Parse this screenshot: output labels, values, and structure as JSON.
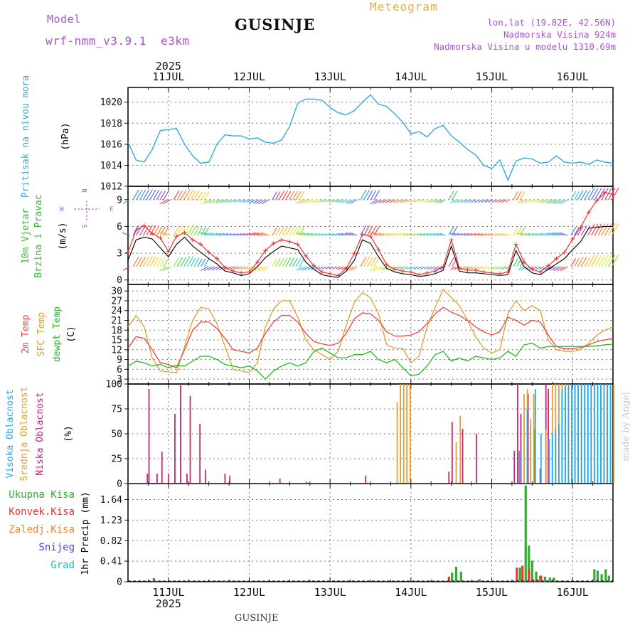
{
  "header": {
    "model_label": "Model",
    "model_name": "wrf-nmm_v3.9.1  e3km",
    "station": "GUSINJE",
    "meteogram_label": "Meteogram",
    "lonlat": "lon,lat (19.82E, 42.56N)",
    "elevation": "Nadmorska Visina 924m",
    "model_elevation": "Nadmorska Visina u modelu 1310.69m",
    "credit": "made by Angel",
    "footer_station": "GUSINJE"
  },
  "colors": {
    "pressure": "#33aadd",
    "wind_speed": "#111111",
    "wind_gust": "#ee3333",
    "temp2m": "#ee4444",
    "sfc_temp": "#e0a030",
    "dewpt": "#22bb22",
    "cloud_high": "#22aaee",
    "cloud_mid": "#e0a030",
    "cloud_low": "#cc2277",
    "precip_total": "#33aa33",
    "precip_conv": "#ee3333",
    "precip_frozen": "#ee8833",
    "snow": "#4444ee",
    "hail": "#22bbbb",
    "purple_text": "#aa55cc",
    "orange_text": "#e0b050"
  },
  "chart_data": [
    {
      "type": "line",
      "panel": "pressure",
      "title": "Pritisak na nivou mora",
      "ylabel": "(hPa)",
      "ylim": [
        1012,
        1021.4
      ],
      "yticks": [
        "1012",
        "1014",
        "1016",
        "1018",
        "1020"
      ],
      "days": [
        "11JUL",
        "12JUL",
        "13JUL",
        "14JUL",
        "15JUL",
        "16JUL"
      ],
      "year": "2025",
      "xlim": [
        10.5,
        16.5
      ],
      "x": [
        10.5,
        10.6,
        10.7,
        10.8,
        10.9,
        11.0,
        11.1,
        11.2,
        11.3,
        11.4,
        11.5,
        11.6,
        11.7,
        11.8,
        11.9,
        12.0,
        12.1,
        12.2,
        12.3,
        12.4,
        12.5,
        12.6,
        12.7,
        12.8,
        12.9,
        13.0,
        13.1,
        13.2,
        13.3,
        13.4,
        13.5,
        13.6,
        13.7,
        13.8,
        13.9,
        14.0,
        14.1,
        14.2,
        14.3,
        14.4,
        14.5,
        14.6,
        14.7,
        14.8,
        14.9,
        15.0,
        15.1,
        15.2,
        15.3,
        15.4,
        15.5,
        15.6,
        15.7,
        15.8,
        15.9,
        16.0,
        16.1,
        16.2,
        16.3,
        16.4,
        16.5
      ],
      "values": [
        1016.2,
        1014.5,
        1014.3,
        1015.5,
        1017.3,
        1017.4,
        1017.5,
        1016.0,
        1014.9,
        1014.2,
        1014.3,
        1016.0,
        1016.9,
        1016.8,
        1016.8,
        1016.5,
        1016.6,
        1016.2,
        1016.1,
        1016.4,
        1017.7,
        1019.9,
        1020.3,
        1020.3,
        1020.2,
        1019.5,
        1019.0,
        1018.8,
        1019.2,
        1020.0,
        1020.7,
        1019.8,
        1019.6,
        1018.9,
        1018.1,
        1017.0,
        1017.2,
        1016.7,
        1017.5,
        1017.8,
        1016.8,
        1016.2,
        1015.5,
        1015.0,
        1014.0,
        1013.7,
        1014.5,
        1012.6,
        1014.4,
        1014.7,
        1014.6,
        1014.2,
        1014.3,
        1014.9,
        1014.3,
        1014.2,
        1014.3,
        1014.1,
        1014.5,
        1014.3,
        1014.2
      ]
    },
    {
      "type": "line",
      "panel": "wind",
      "title": "10m Vjetar",
      "title2": "Brzina i Pravac",
      "ylabel": "(m/s)",
      "ylim": [
        -0.5,
        10.5
      ],
      "yticks": [
        "0",
        "3",
        "6",
        "9"
      ],
      "compass_labels": {
        "n": "N",
        "s": "S",
        "e": "E",
        "w": "W"
      },
      "x": [
        10.5,
        10.6,
        10.7,
        10.8,
        10.9,
        11.0,
        11.1,
        11.2,
        11.3,
        11.4,
        11.5,
        11.6,
        11.7,
        11.8,
        11.9,
        12.0,
        12.1,
        12.2,
        12.3,
        12.4,
        12.5,
        12.6,
        12.7,
        12.8,
        12.9,
        13.0,
        13.1,
        13.2,
        13.3,
        13.4,
        13.5,
        13.6,
        13.7,
        13.8,
        13.9,
        14.0,
        14.1,
        14.2,
        14.3,
        14.4,
        14.5,
        14.6,
        14.7,
        14.8,
        14.9,
        15.0,
        15.1,
        15.2,
        15.3,
        15.4,
        15.5,
        15.6,
        15.7,
        15.8,
        15.9,
        16.0,
        16.1,
        16.2,
        16.3,
        16.4,
        16.5
      ],
      "series": [
        {
          "name": "speed",
          "values": [
            2.2,
            4.5,
            4.8,
            4.6,
            3.6,
            2.6,
            4.0,
            4.8,
            3.8,
            3.1,
            2.4,
            1.8,
            1.0,
            0.8,
            0.5,
            0.7,
            1.5,
            2.5,
            3.2,
            3.8,
            3.6,
            3.4,
            2.0,
            1.2,
            0.6,
            0.4,
            0.3,
            1.0,
            2.2,
            4.5,
            4.1,
            2.6,
            1.3,
            0.9,
            0.7,
            0.6,
            0.4,
            0.5,
            0.7,
            1.1,
            3.8,
            1.0,
            0.8,
            0.8,
            0.7,
            0.6,
            0.5,
            0.6,
            3.3,
            1.5,
            0.8,
            0.6,
            1.2,
            1.8,
            2.4,
            3.4,
            4.3,
            5.8,
            5.9,
            6.0,
            6.0
          ]
        },
        {
          "name": "gust",
          "values": [
            3.1,
            5.6,
            6.1,
            5.2,
            4.7,
            3.2,
            4.9,
            5.3,
            4.5,
            4.0,
            3.1,
            2.4,
            1.4,
            1.0,
            0.8,
            0.9,
            2.0,
            3.3,
            4.1,
            4.5,
            4.3,
            4.0,
            2.7,
            1.6,
            0.9,
            0.7,
            0.5,
            1.3,
            3.0,
            5.1,
            4.9,
            3.4,
            1.7,
            1.2,
            1.0,
            0.9,
            0.6,
            0.8,
            1.0,
            1.5,
            4.5,
            1.3,
            1.1,
            1.1,
            0.9,
            0.8,
            0.7,
            0.9,
            4.0,
            2.0,
            1.2,
            0.9,
            1.6,
            2.4,
            3.1,
            4.6,
            5.9,
            7.6,
            8.9,
            9.8,
            9.6
          ]
        }
      ]
    },
    {
      "type": "line",
      "panel": "temperature",
      "title": "2m Temp",
      "title2": "SFC Temp",
      "title3": "dewpt Temp",
      "ylabel": "(C)",
      "ylim": [
        1.5,
        32
      ],
      "yticks": [
        "3",
        "6",
        "9",
        "12",
        "15",
        "18",
        "21",
        "24",
        "27",
        "30"
      ],
      "x": [
        10.5,
        10.6,
        10.7,
        10.8,
        10.9,
        11.0,
        11.1,
        11.2,
        11.3,
        11.4,
        11.5,
        11.6,
        11.7,
        11.8,
        11.9,
        12.0,
        12.1,
        12.2,
        12.3,
        12.4,
        12.5,
        12.6,
        12.7,
        12.8,
        12.9,
        13.0,
        13.1,
        13.2,
        13.3,
        13.4,
        13.5,
        13.6,
        13.7,
        13.8,
        13.9,
        14.0,
        14.1,
        14.2,
        14.3,
        14.4,
        14.5,
        14.6,
        14.7,
        14.8,
        14.9,
        15.0,
        15.1,
        15.2,
        15.3,
        15.4,
        15.5,
        15.6,
        15.7,
        15.8,
        15.9,
        16.0,
        16.1,
        16.2,
        16.3,
        16.4,
        16.5
      ],
      "series": [
        {
          "name": "2m Temp",
          "values": [
            12.5,
            16.0,
            15.5,
            12.0,
            8.0,
            7.5,
            6.5,
            12.0,
            18.0,
            20.5,
            20.5,
            18.5,
            15.5,
            12.0,
            11.5,
            11.0,
            12.5,
            17.0,
            20.5,
            22.5,
            22.5,
            20.5,
            17.0,
            14.5,
            13.8,
            13.3,
            14.0,
            17.0,
            21.5,
            23.3,
            23.0,
            21.0,
            17.5,
            16.2,
            16.2,
            16.5,
            17.5,
            20.0,
            23.0,
            25.0,
            23.5,
            22.5,
            21.0,
            19.0,
            17.5,
            16.5,
            17.5,
            22.0,
            21.0,
            19.5,
            21.0,
            20.5,
            16.5,
            13.0,
            12.3,
            12.3,
            12.7,
            13.5,
            14.5,
            15.0,
            15.5
          ]
        },
        {
          "name": "SFC Temp",
          "values": [
            19.0,
            22.5,
            19.0,
            9.5,
            5.5,
            5.2,
            5.0,
            13.0,
            21.0,
            25.0,
            24.5,
            20.0,
            13.0,
            6.0,
            5.5,
            5.0,
            8.0,
            19.0,
            24.5,
            27.0,
            27.0,
            22.0,
            15.0,
            12.0,
            10.5,
            9.0,
            11.5,
            19.5,
            26.5,
            29.5,
            28.0,
            23.0,
            13.5,
            12.5,
            12.5,
            8.0,
            10.0,
            19.0,
            25.0,
            30.5,
            28.0,
            25.5,
            21.0,
            16.0,
            12.5,
            11.0,
            12.0,
            23.0,
            27.0,
            24.0,
            25.5,
            24.0,
            15.0,
            12.0,
            11.5,
            11.5,
            12.0,
            14.0,
            16.5,
            18.0,
            19.0
          ]
        },
        {
          "name": "dewpt Temp",
          "values": [
            7.0,
            8.5,
            8.0,
            7.0,
            7.5,
            6.5,
            7.2,
            7.0,
            8.5,
            10.0,
            10.0,
            9.0,
            7.5,
            7.0,
            6.5,
            7.0,
            5.5,
            3.0,
            5.5,
            7.0,
            8.0,
            7.0,
            8.0,
            11.5,
            12.5,
            11.0,
            9.5,
            9.5,
            10.5,
            10.5,
            11.5,
            9.0,
            8.0,
            9.0,
            6.5,
            4.0,
            4.5,
            7.0,
            10.5,
            11.5,
            8.5,
            9.5,
            8.5,
            10.0,
            9.5,
            9.0,
            9.5,
            11.5,
            10.0,
            13.5,
            14.0,
            12.5,
            13.0,
            13.0,
            13.0,
            13.0,
            13.0,
            13.0,
            13.2,
            13.5,
            13.7
          ]
        }
      ]
    },
    {
      "type": "bar",
      "panel": "clouds",
      "title": "Visoka Oblacnost",
      "title2": "Srednja Oblacnost",
      "title3": "Niska Oblacnost",
      "ylabel": "(%)",
      "ylim": [
        0,
        100
      ],
      "yticks": [
        "0",
        "25",
        "50",
        "75",
        "100"
      ],
      "series": [
        {
          "name": "low",
          "x": [
            10.74,
            10.76,
            10.86,
            10.92,
            11.0,
            11.08,
            11.15,
            11.23,
            11.27,
            11.39,
            11.46,
            11.7,
            11.76,
            12.38,
            12.71,
            13.44,
            14.47,
            14.51,
            14.64,
            14.81,
            15.28,
            15.32,
            15.36,
            15.45,
            15.53,
            15.6,
            15.67,
            15.7
          ],
          "values": [
            10,
            95,
            10,
            32,
            10,
            70,
            100,
            10,
            88,
            60,
            14,
            10,
            8,
            5,
            2,
            8,
            12,
            62,
            55,
            50,
            33,
            100,
            70,
            90,
            55,
            15,
            100,
            95
          ]
        },
        {
          "name": "mid",
          "x": [
            13.82,
            13.86,
            13.9,
            13.94,
            13.98,
            14.55,
            14.6,
            15.39,
            15.43,
            15.47,
            15.51,
            15.66,
            15.74,
            15.78,
            15.82,
            15.86,
            15.9,
            15.94,
            15.98,
            16.02,
            16.06,
            16.1,
            16.14,
            16.18,
            16.22,
            16.26,
            16.3,
            16.34,
            16.38,
            16.42,
            16.46,
            16.5
          ],
          "values": [
            82,
            100,
            100,
            100,
            100,
            42,
            68,
            90,
            95,
            65,
            90,
            55,
            100,
            100,
            100,
            100,
            100,
            100,
            100,
            100,
            100,
            100,
            100,
            100,
            100,
            100,
            100,
            100,
            100,
            100,
            100,
            100
          ]
        },
        {
          "name": "high",
          "x": [
            15.35,
            15.45,
            15.55,
            15.62,
            15.72,
            15.76,
            15.8,
            15.84,
            15.88,
            15.92,
            15.96,
            16.0,
            16.04,
            16.08,
            16.12,
            16.16,
            16.2,
            16.24,
            16.28,
            16.32,
            16.36,
            16.4,
            16.44,
            16.48
          ],
          "values": [
            33,
            75,
            95,
            50,
            45,
            50,
            55,
            60,
            95,
            98,
            100,
            100,
            100,
            100,
            100,
            100,
            100,
            100,
            100,
            100,
            100,
            100,
            100,
            100
          ]
        }
      ]
    },
    {
      "type": "bar",
      "panel": "precipitation",
      "legend": [
        "Ukupna  Kisa",
        "Konvek.Kisa",
        "Zaledj.Kisa",
        "Snijeg",
        "Grad"
      ],
      "ylabel": "1hr  Precip  (mm)",
      "ylim": [
        0,
        1.96
      ],
      "yticks": [
        "0",
        "0.41",
        "0.82",
        "1.23",
        "1.64"
      ],
      "series": [
        {
          "name": "total",
          "x": [
            10.82,
            11.7,
            14.51,
            14.56,
            14.62,
            14.85,
            15.35,
            15.42,
            15.46,
            15.5,
            15.55,
            15.6,
            15.66,
            15.72,
            15.77,
            16.27,
            16.31,
            16.36,
            16.41,
            16.45
          ],
          "values": [
            0.07,
            0.02,
            0.18,
            0.3,
            0.2,
            0.05,
            0.28,
            1.92,
            0.72,
            0.42,
            0.2,
            0.12,
            0.1,
            0.08,
            0.08,
            0.25,
            0.22,
            0.15,
            0.25,
            0.12
          ]
        },
        {
          "name": "convective",
          "x": [
            14.49,
            15.33,
            15.4,
            15.48,
            15.53,
            15.58,
            15.63
          ],
          "values": [
            0.1,
            0.28,
            0.32,
            0.25,
            0.05,
            0.05,
            0.12
          ]
        }
      ]
    }
  ]
}
